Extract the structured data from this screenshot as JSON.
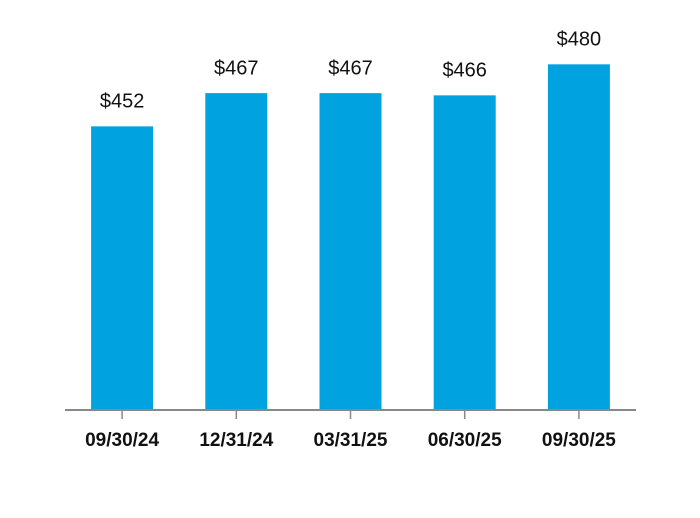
{
  "chart_data": {
    "type": "bar",
    "categories": [
      "09/30/24",
      "12/31/24",
      "03/31/25",
      "06/30/25",
      "09/30/25"
    ],
    "values": [
      452,
      467,
      467,
      466,
      480
    ],
    "value_labels": [
      "$452",
      "$467",
      "$467",
      "$466",
      "$480"
    ],
    "color": "#00a3e0",
    "ylim": [
      324,
      500
    ]
  }
}
